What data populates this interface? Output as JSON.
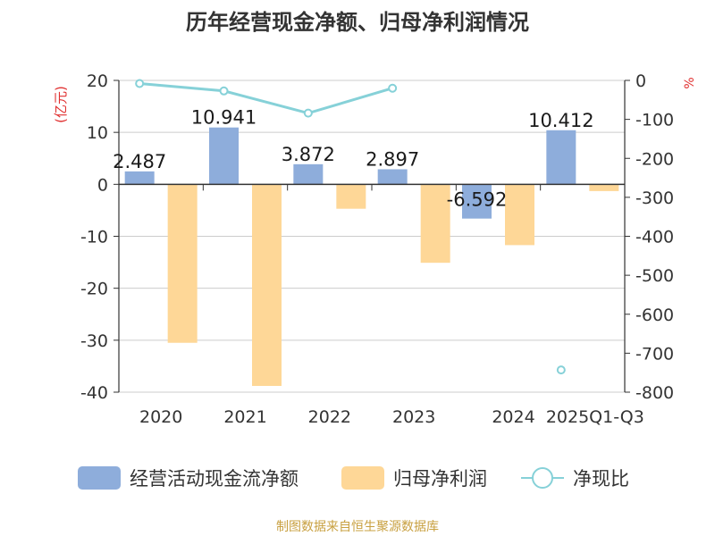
{
  "chart_data": {
    "type": "bar",
    "title": "历年经营现金净额、归母净利润情况",
    "categories": [
      "2020",
      "2021",
      "2022",
      "2023",
      "2024",
      "2025Q1-Q3"
    ],
    "series": [
      {
        "name": "经营活动现金流净额",
        "type": "bar",
        "axis": "left",
        "color": "#8eaddb",
        "values": [
          2.487,
          10.941,
          3.872,
          2.897,
          -6.592,
          10.412
        ],
        "labels": [
          "2.487",
          "10.941",
          "3.872",
          "2.897",
          "-6.592",
          "10.412"
        ]
      },
      {
        "name": "归母净利润",
        "type": "bar",
        "axis": "left",
        "color": "#fed797",
        "values": [
          -30.5,
          -38.8,
          -4.7,
          -15.1,
          -11.7,
          -1.3
        ]
      },
      {
        "name": "净现比",
        "type": "line",
        "axis": "right",
        "color": "#86d1d8",
        "values": [
          -8,
          -27,
          -84,
          -20,
          null,
          -743
        ]
      }
    ],
    "y_left": {
      "label": "(亿元)",
      "ylim": [
        -40,
        20
      ],
      "ticks": [
        "20",
        "10",
        "0",
        "-10",
        "-20",
        "-30",
        "-40"
      ],
      "tick_values": [
        20,
        10,
        0,
        -10,
        -20,
        -30,
        -40
      ]
    },
    "y_right": {
      "label": "%",
      "ylim": [
        -800,
        0
      ],
      "ticks": [
        "0",
        "-100",
        "-200",
        "-300",
        "-400",
        "-500",
        "-600",
        "-700",
        "-800"
      ],
      "tick_values": [
        0,
        -100,
        -200,
        -300,
        -400,
        -500,
        -600,
        -700,
        -800
      ]
    },
    "legend_position": "bottom",
    "grid": true
  },
  "source": "制图数据来自恒生聚源数据库",
  "colors": {
    "axis_label_red": "#e03030",
    "source_text": "#c8a040",
    "grid": "#cccccc",
    "axis": "#333333"
  }
}
